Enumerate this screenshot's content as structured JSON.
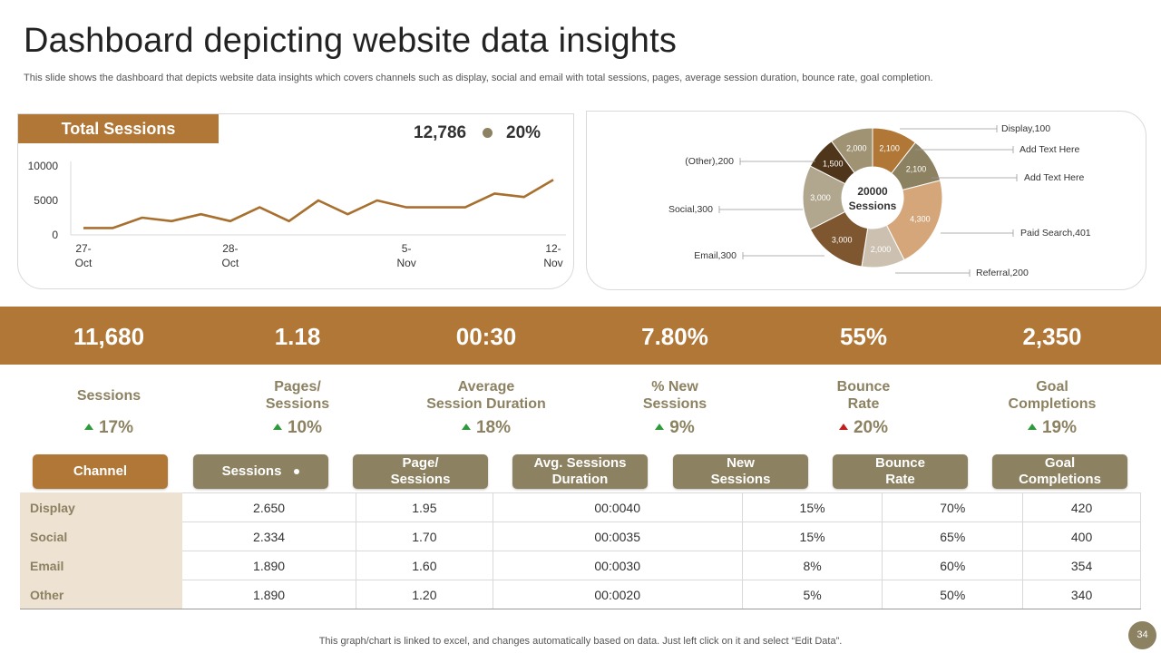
{
  "title": "Dashboard depicting website data insights",
  "subtitle": "This slide shows the dashboard that depicts website data insights which covers channels such as display, social and email with total sessions, pages, average session duration, bounce rate, goal completion.",
  "total_sessions": {
    "header": "Total Sessions",
    "value": "12,786",
    "change": "20%"
  },
  "chart_data": [
    {
      "type": "line",
      "title": "Total Sessions",
      "x_tick_labels": [
        "27-Oct",
        "28-Oct",
        "5-Nov",
        "12-Nov"
      ],
      "y_tick_labels": [
        "10000",
        "5000",
        "0"
      ],
      "ylim": [
        0,
        10000
      ],
      "grid": false,
      "series": [
        {
          "values": [
            1000,
            1000,
            2500,
            2000,
            3000,
            2000,
            4000,
            2000,
            5000,
            3000,
            5000,
            4000,
            4000,
            4000,
            6000,
            5500,
            8000
          ],
          "color": "#a86f2e"
        }
      ]
    },
    {
      "type": "pie",
      "donut": true,
      "center_label": [
        "20000",
        "Sessions"
      ],
      "slices": [
        {
          "label": "2,100",
          "value": 2100,
          "color": "#b07737"
        },
        {
          "label": "2,100",
          "value": 2100,
          "color": "#8c8161"
        },
        {
          "label": "4,300",
          "value": 4300,
          "color": "#d5a679"
        },
        {
          "label": "2,000",
          "value": 2000,
          "color": "#ccc1b0"
        },
        {
          "label": "3,000",
          "value": 3000,
          "color": "#7e5730"
        },
        {
          "label": "3,000",
          "value": 3000,
          "color": "#b0a78e"
        },
        {
          "label": "1,500",
          "value": 1500,
          "color": "#4f3519"
        },
        {
          "label": "2,000",
          "value": 2000,
          "color": "#9f9373"
        }
      ],
      "callouts": [
        "Display,100",
        "Add Text Here",
        "Add Text Here",
        "Paid Search,401",
        "Referral,200",
        "Email,300",
        "Social,300",
        "(Other),200"
      ]
    }
  ],
  "kpis": [
    {
      "value": "11,680",
      "label": [
        "Sessions"
      ],
      "change": "17%",
      "direction": "up",
      "color": "#2e9a3c"
    },
    {
      "value": "1.18",
      "label": [
        "Pages/",
        "Sessions"
      ],
      "change": "10%",
      "direction": "up",
      "color": "#2e9a3c"
    },
    {
      "value": "00:30",
      "label": [
        "Average",
        "Session Duration"
      ],
      "change": "18%",
      "direction": "up",
      "color": "#2e9a3c"
    },
    {
      "value": "7.80%",
      "label": [
        "% New",
        "Sessions"
      ],
      "change": "9%",
      "direction": "up",
      "color": "#2e9a3c"
    },
    {
      "value": "55%",
      "label": [
        "Bounce",
        "Rate"
      ],
      "change": "20%",
      "direction": "up",
      "color": "#c0201d"
    },
    {
      "value": "2,350",
      "label": [
        "Goal",
        "Completions"
      ],
      "change": "19%",
      "direction": "up",
      "color": "#2e9a3c"
    }
  ],
  "table": {
    "headers": [
      [
        "Channel"
      ],
      [
        "Sessions"
      ],
      [
        "Page/",
        "Sessions"
      ],
      [
        "Avg. Sessions",
        "Duration"
      ],
      [
        "New",
        "Sessions"
      ],
      [
        "Bounce",
        "Rate"
      ],
      [
        "Goal",
        "Completions"
      ]
    ],
    "rows": [
      [
        "Display",
        "2.650",
        "1.95",
        "00:0040",
        "15%",
        "70%",
        "420"
      ],
      [
        "Social",
        "2.334",
        "1.70",
        "00:0035",
        "15%",
        "65%",
        "400"
      ],
      [
        "Email",
        "1.890",
        "1.60",
        "00:0030",
        "8%",
        "60%",
        "354"
      ],
      [
        "Other",
        "1.890",
        "1.20",
        "00:0020",
        "5%",
        "50%",
        "340"
      ]
    ]
  },
  "footer": "This graph/chart is linked to excel,  and changes automatically based on data. Just left click on it and select “Edit Data”.",
  "page_number": "34",
  "colors": {
    "accent": "#b07737",
    "olive": "#8c8161",
    "rowhead_bg": "#eee2d3",
    "up": "#2e9a3c",
    "down": "#c0201d"
  }
}
